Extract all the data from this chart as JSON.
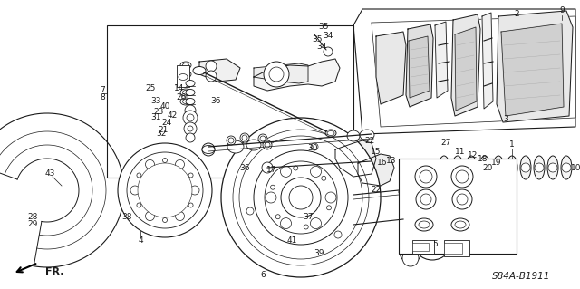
{
  "background_color": "#ffffff",
  "diagram_code": "S84A-B1911",
  "line_color": "#1a1a1a",
  "text_color": "#1a1a1a",
  "label_fontsize": 6.5,
  "code_fontsize": 7.5,
  "figsize": [
    6.4,
    3.19
  ],
  "dpi": 100
}
